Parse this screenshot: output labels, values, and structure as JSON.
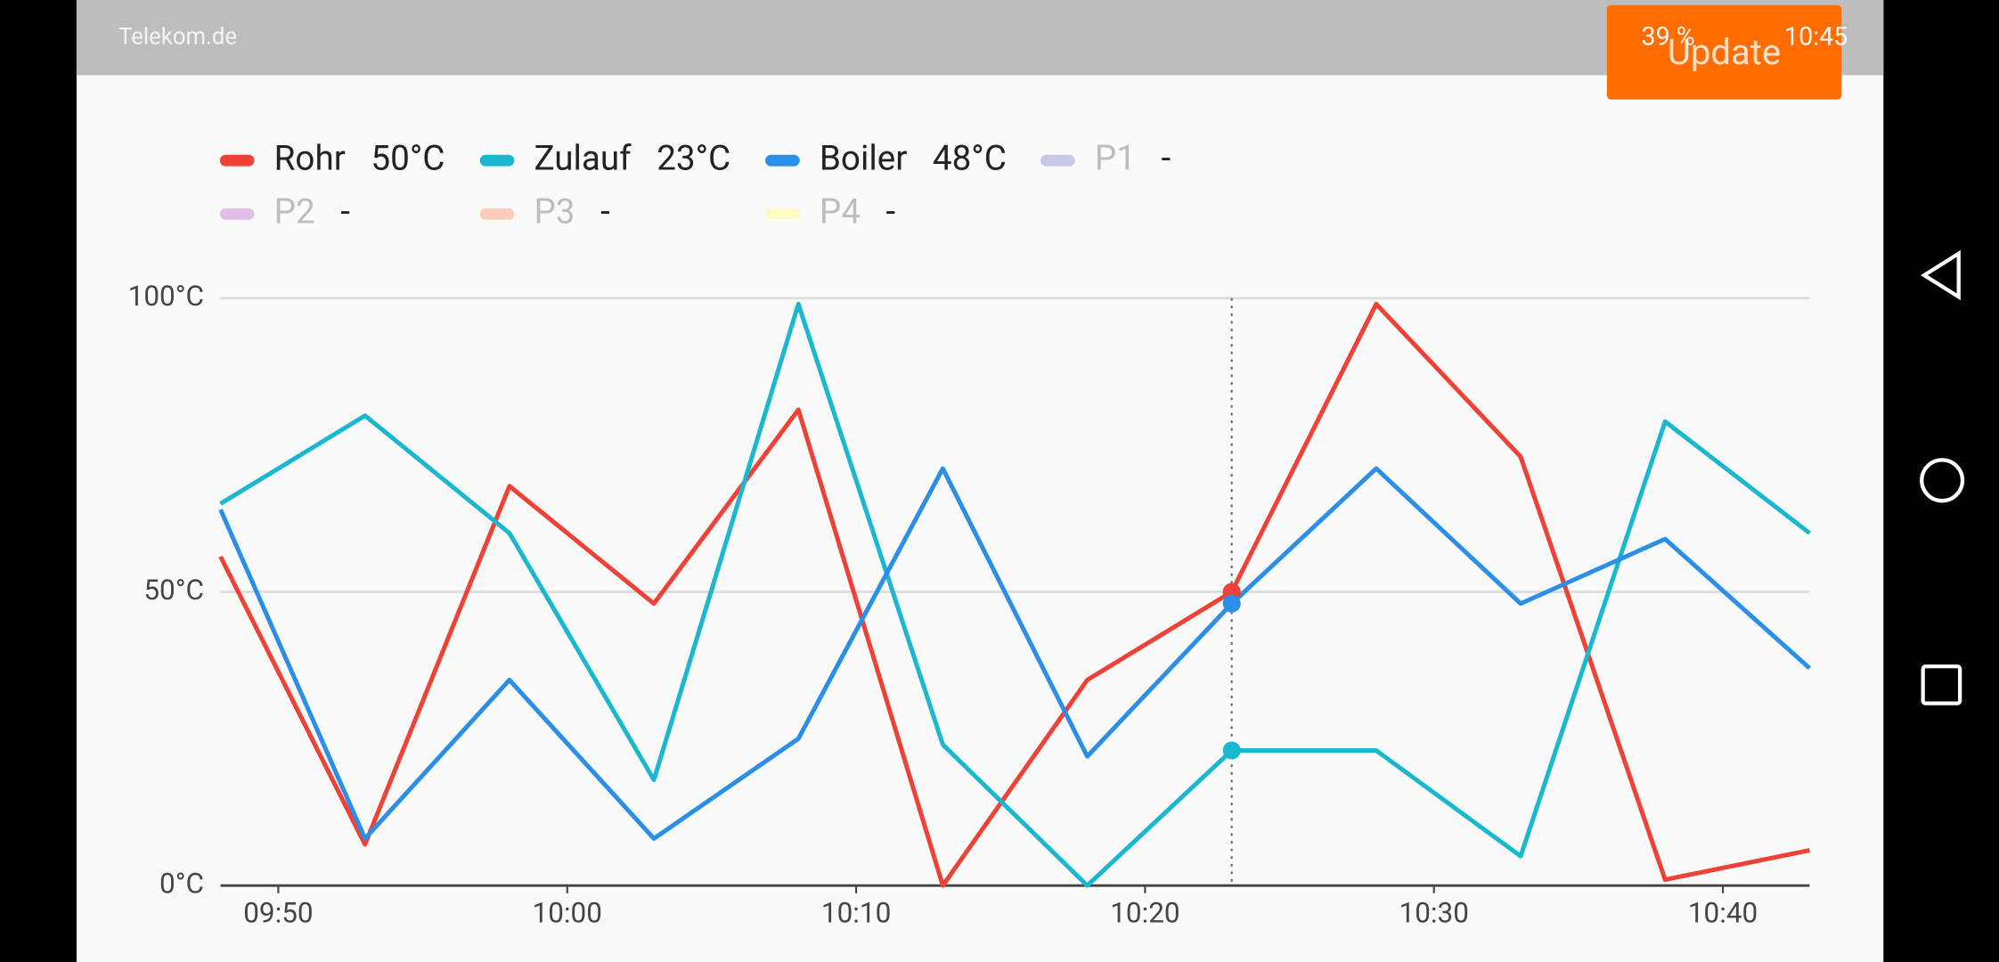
{
  "status_bar": {
    "carrier": "Telekom.de",
    "battery": "39 %",
    "time": "10:45"
  },
  "button": "Update",
  "chart_data": {
    "type": "line",
    "x": [
      "09:48",
      "09:53",
      "09:58",
      "10:03",
      "10:08",
      "10:13",
      "10:18",
      "10:23",
      "10:28",
      "10:33",
      "10:38",
      "10:43"
    ],
    "xlim": [
      "09:48",
      "10:43"
    ],
    "xticks": [
      "09:50",
      "10:00",
      "10:10",
      "10:20",
      "10:30",
      "10:40"
    ],
    "ylim": [
      0,
      100
    ],
    "yticks": [
      {
        "value": 0,
        "label": "0°C"
      },
      {
        "value": 50,
        "label": "50°C"
      },
      {
        "value": 100,
        "label": "100°C"
      }
    ],
    "grid": true,
    "cursor_x": "10:23",
    "series": [
      {
        "name": "Rohr",
        "color": "#ef4136",
        "current": "50°C",
        "values": [
          56,
          7,
          68,
          48,
          81,
          0,
          35,
          50,
          99,
          73,
          1,
          6
        ]
      },
      {
        "name": "Zulauf",
        "color": "#1ab8d0",
        "current": "23°C",
        "values": [
          65,
          80,
          60,
          18,
          99,
          24,
          0,
          23,
          23,
          5,
          79,
          60
        ]
      },
      {
        "name": "Boiler",
        "color": "#2b8fe8",
        "current": "48°C",
        "values": [
          64,
          8,
          35,
          8,
          25,
          71,
          22,
          48,
          71,
          48,
          59,
          37
        ]
      }
    ],
    "inactive_series": [
      {
        "name": "P1",
        "color": "#c5cae9",
        "current": "-"
      },
      {
        "name": "P2",
        "color": "#e1bee7",
        "current": "-"
      },
      {
        "name": "P3",
        "color": "#ffccbc",
        "current": "-"
      },
      {
        "name": "P4",
        "color": "#fff9c4",
        "current": "-"
      }
    ]
  }
}
